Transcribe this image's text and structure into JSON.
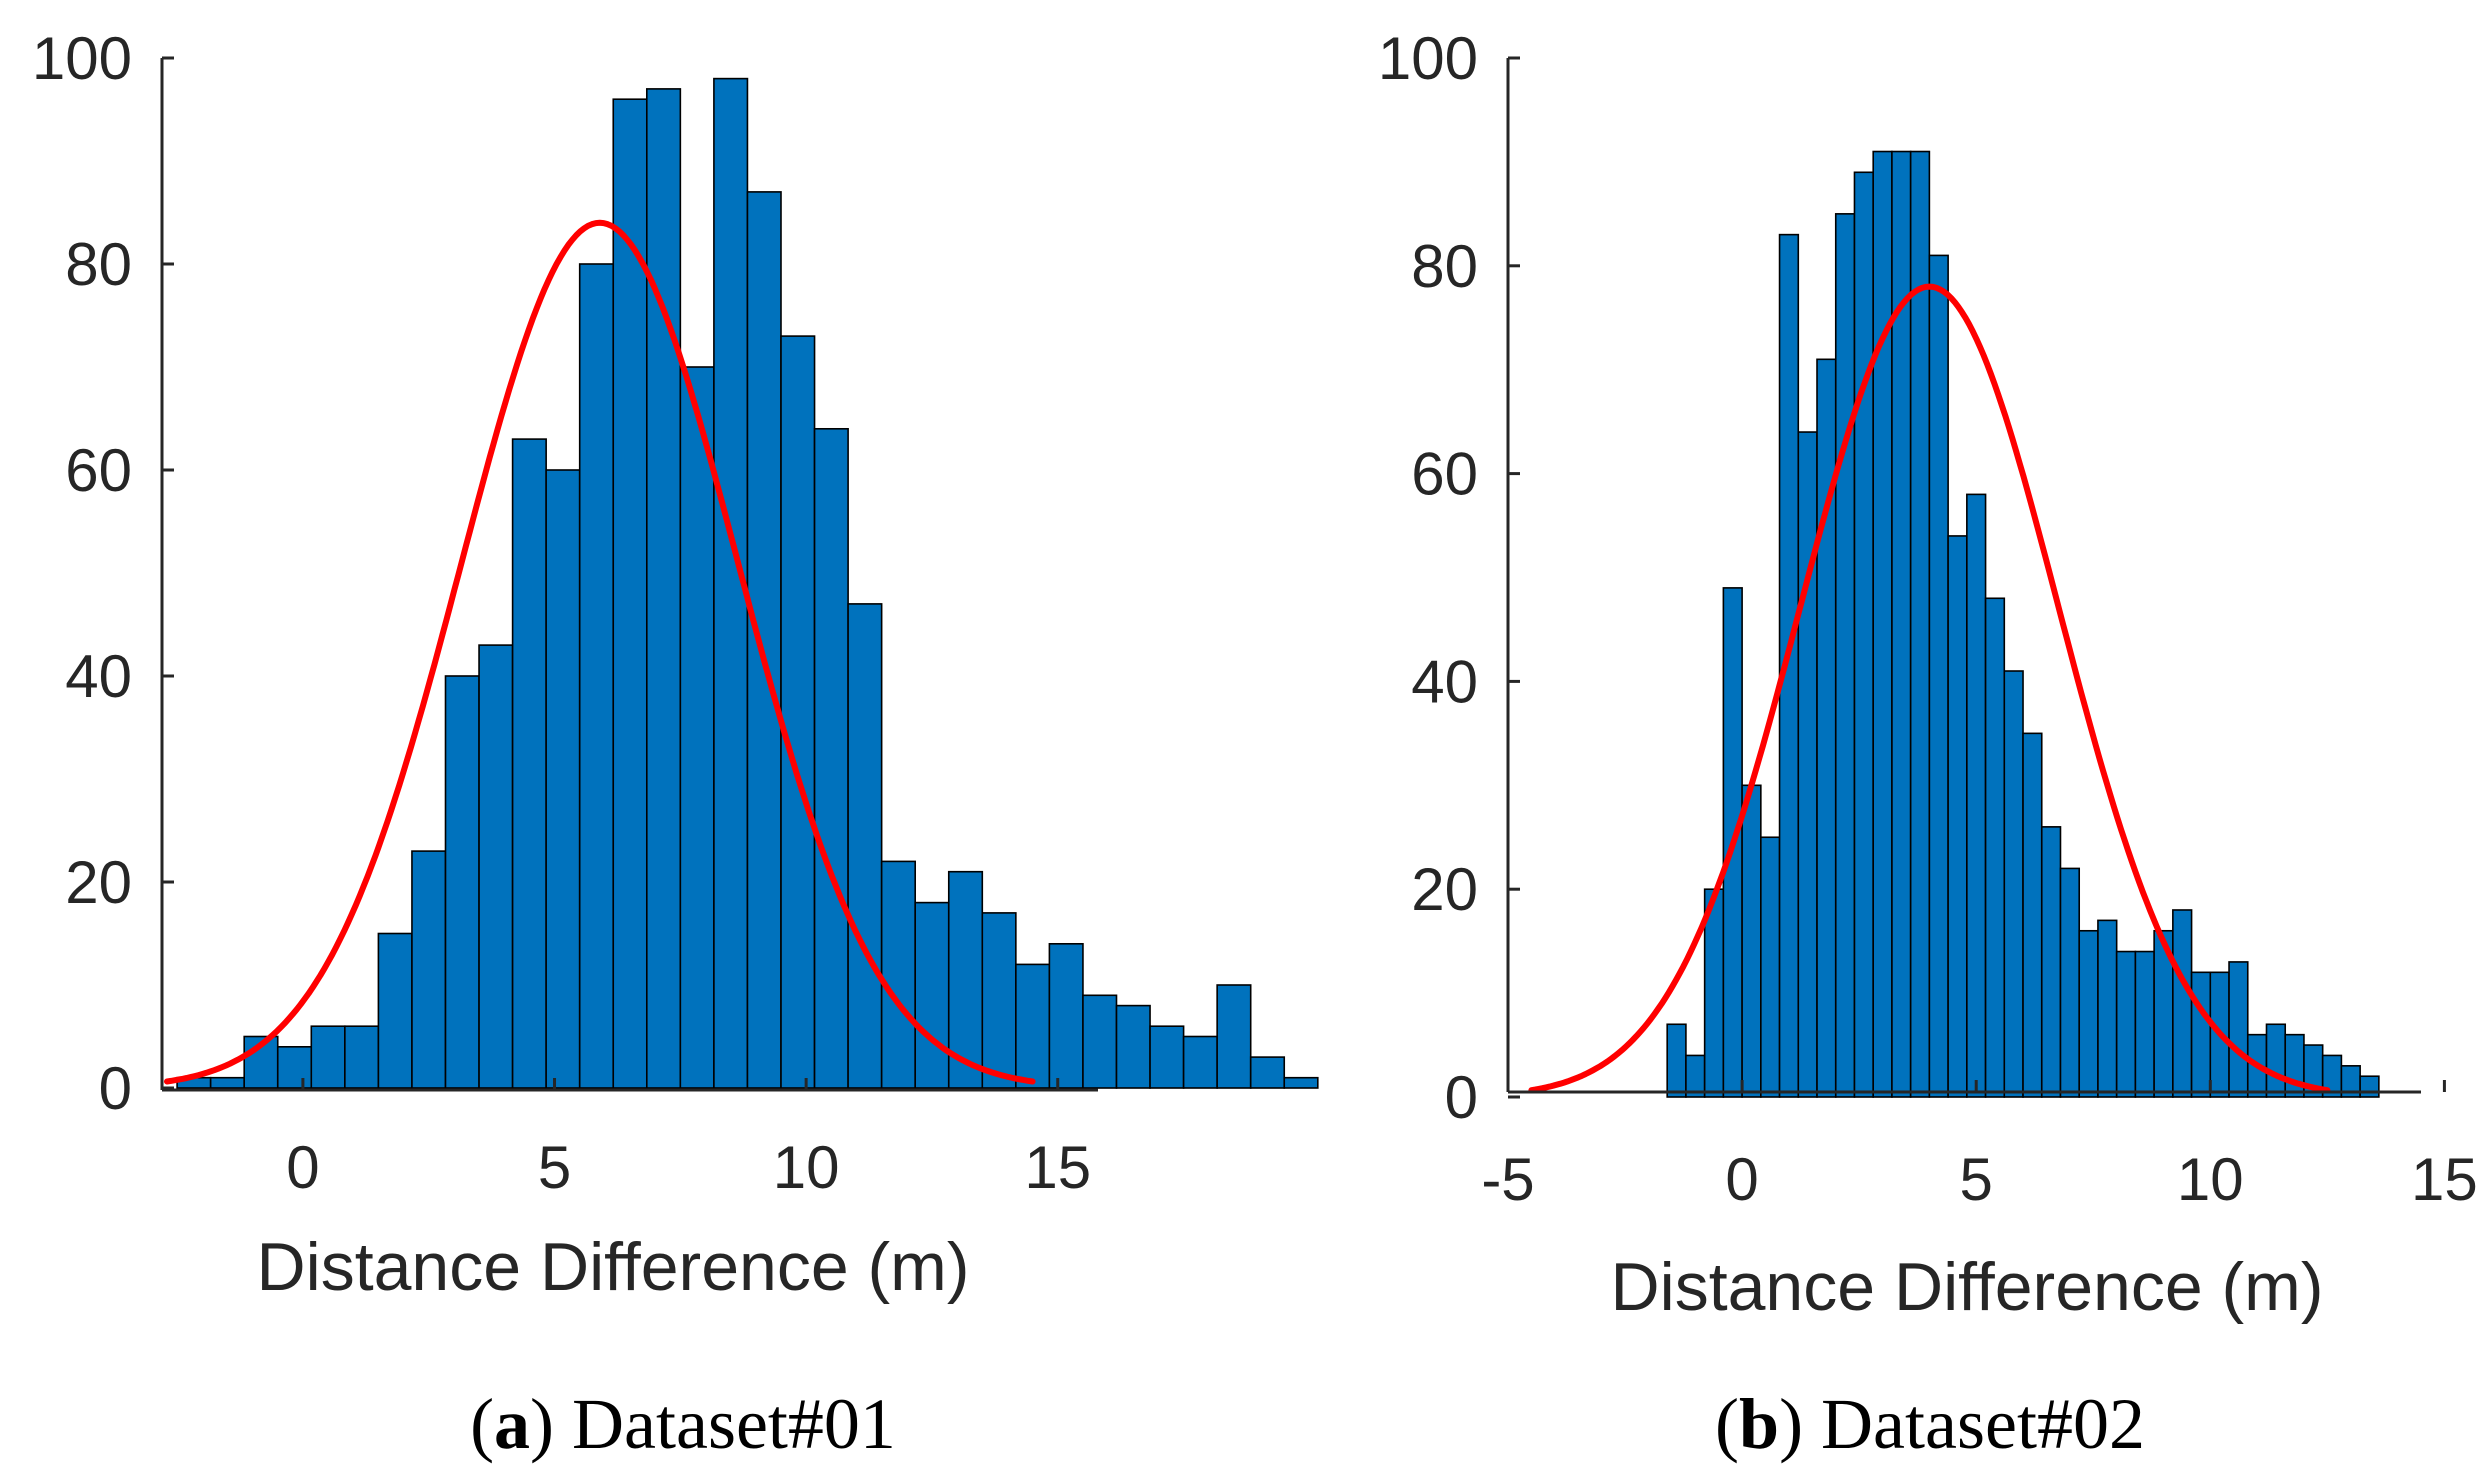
{
  "colors": {
    "bar_fill": "#0072BD",
    "bar_edge": "#000000",
    "fit_line": "#FF0000",
    "axis": "#262626"
  },
  "chart_data": [
    {
      "type": "bar",
      "subtype": "histogram_with_normal_fit",
      "caption_letter": "a",
      "caption_text": "Dataset#01",
      "xlabel": "Distance Difference (m)",
      "ylabel": "",
      "xlim": [
        -2.8,
        15.8
      ],
      "ylim": [
        0,
        100
      ],
      "xticks": [
        "0",
        "5",
        "10",
        "15"
      ],
      "yticks": [
        "0",
        "20",
        "40",
        "60",
        "80",
        "100"
      ],
      "bin_start": -2.5,
      "bin_width": 0.6667,
      "values": [
        1,
        1,
        5,
        4,
        6,
        6,
        15,
        23,
        40,
        43,
        63,
        60,
        80,
        96,
        97,
        70,
        98,
        87,
        73,
        64,
        47,
        22,
        18,
        21,
        17,
        12,
        14,
        9,
        8,
        6,
        5,
        10,
        3,
        1
      ],
      "fit": {
        "type": "normal",
        "mean": 5.9,
        "peak": 84,
        "sigma": 2.75,
        "x_range": [
          -2.7,
          14.5
        ]
      }
    },
    {
      "type": "bar",
      "subtype": "histogram_with_normal_fit",
      "caption_letter": "b",
      "caption_text": "Dataset#02",
      "xlabel": "Distance Difference (m)",
      "ylabel": "",
      "xlim": [
        -5,
        14.5
      ],
      "ylim": [
        0,
        100
      ],
      "xticks": [
        "-5",
        "0",
        "5",
        "10",
        "15"
      ],
      "yticks": [
        "0",
        "20",
        "40",
        "60",
        "80",
        "100"
      ],
      "bin_start": -1.6,
      "bin_width": 0.4,
      "values": [
        7,
        4,
        20,
        49,
        30,
        25,
        83,
        64,
        71,
        85,
        89,
        91,
        91,
        91,
        81,
        54,
        58,
        48,
        41,
        35,
        26,
        22,
        16,
        17,
        14,
        14,
        16,
        18,
        12,
        12,
        13,
        6,
        7,
        6,
        5,
        4,
        3,
        2
      ],
      "fit": {
        "type": "normal",
        "mean": 4.0,
        "peak": 78,
        "sigma": 2.75,
        "x_range": [
          -4.5,
          12.5
        ]
      }
    }
  ]
}
